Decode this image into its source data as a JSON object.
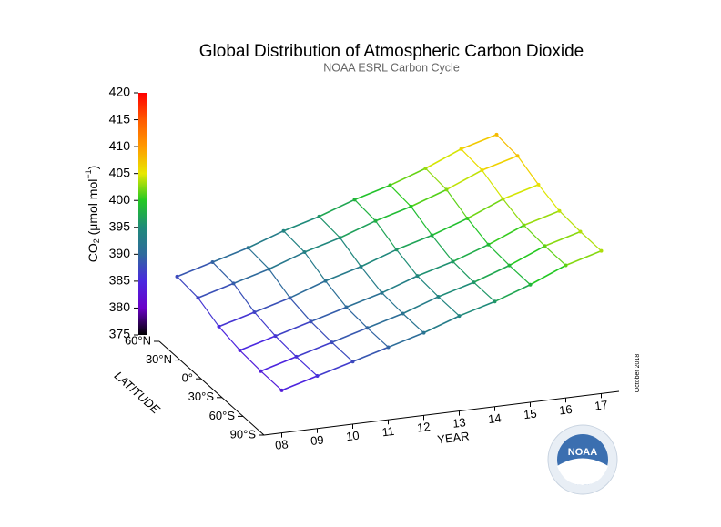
{
  "chart_data": {
    "type": "surface",
    "title": "Global Distribution of Atmospheric Carbon Dioxide",
    "subtitle": "NOAA ESRL Carbon Cycle",
    "zlabel": {
      "main": "CO",
      "sub": "2",
      "unit": " (μmol mol",
      "sup": "−1",
      "end": ")"
    },
    "zlim": [
      375,
      420
    ],
    "zticks": [
      375,
      380,
      385,
      390,
      395,
      400,
      405,
      410,
      415,
      420
    ],
    "zcolors": [
      "#000000",
      "#6a00c8",
      "#4a28e0",
      "#2f6a9c",
      "#1f8a7a",
      "#22c822",
      "#e8e800",
      "#ff9a00",
      "#ff5a00",
      "#ff0000"
    ],
    "ylabel": "LATITUDE",
    "latitudes": [
      "90°S",
      "60°S",
      "30°S",
      "0°",
      "30°N",
      "60°N"
    ],
    "xlabel": "YEAR",
    "years": [
      "08",
      "09",
      "10",
      "11",
      "12",
      "13",
      "14",
      "15",
      "16",
      "17"
    ],
    "values": [
      [
        383.5,
        385.5,
        387.5,
        389.5,
        391.5,
        394,
        396,
        398.5,
        401.5,
        403.5
      ],
      [
        383.6,
        385.6,
        387.6,
        389.6,
        391.6,
        394.1,
        396.1,
        398.6,
        401.6,
        403.6
      ],
      [
        384,
        386,
        388,
        390,
        392,
        394.5,
        396.5,
        399,
        402,
        404
      ],
      [
        385,
        387,
        389,
        391.5,
        393.5,
        396,
        398,
        400.5,
        403.5,
        405.5
      ],
      [
        387,
        389,
        391,
        393.5,
        395.5,
        398,
        400,
        402.5,
        405.5,
        407.5
      ],
      [
        387.5,
        389.5,
        391.5,
        394,
        396,
        398.5,
        400.5,
        403,
        406,
        408
      ]
    ],
    "date_note": "October 2018",
    "logo_text": "NOAA"
  }
}
